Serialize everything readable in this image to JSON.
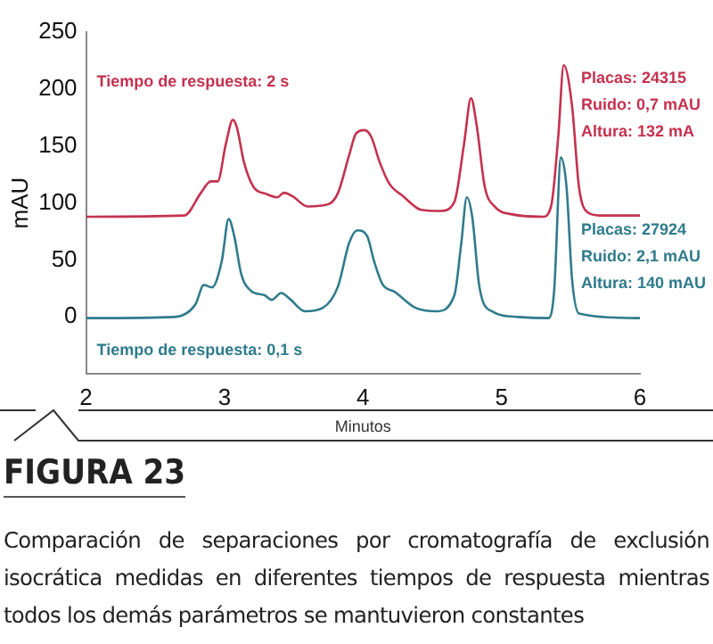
{
  "chart_data": {
    "type": "line",
    "title": "FIGURA 23",
    "subtitle": "Comparación de separaciones por cromatografía de exclusión isocrática medidas en diferentes tiempos de respuesta mientras todos los demás parámetros se mantuvieron constantes",
    "xlabel": "Minutos",
    "ylabel": "mAU",
    "xlim": [
      2,
      6
    ],
    "xticks": [
      2,
      3,
      4,
      5,
      6
    ],
    "ylim": [
      -50,
      250
    ],
    "yticks": [
      0,
      50,
      100,
      150,
      200,
      250
    ],
    "grid": false,
    "legend": false,
    "marker": "none",
    "line_style": "solid",
    "series": [
      {
        "name": "Tiempo de respuesta: 2 s",
        "color": "#c4324f",
        "x": [
          2,
          2.71,
          2.83,
          2.9,
          2.95,
          3.01,
          3.06,
          3.09,
          3.14,
          3.21,
          3.3,
          3.38,
          3.43,
          3.49,
          3.6,
          3.75,
          3.82,
          3.9,
          3.95,
          4.01,
          4.06,
          4.12,
          4.19,
          4.29,
          4.42,
          4.56,
          4.66,
          4.73,
          4.78,
          4.82,
          4.88,
          4.95,
          5.08,
          5.3,
          5.36,
          5.41,
          5.45,
          5.51,
          5.56,
          5.62,
          5.71,
          6
        ],
        "values": [
          88,
          89,
          109,
          119,
          119,
          152,
          173,
          166,
          136,
          114,
          108,
          105,
          109,
          106,
          97,
          99,
          109,
          142,
          161,
          164,
          158,
          136,
          117,
          106,
          94,
          93,
          101,
          152,
          192,
          169,
          114,
          97,
          90,
          88,
          98,
          158,
          221,
          185,
          114,
          92,
          89,
          89
        ]
      },
      {
        "name": "Tiempo de respuesta: 0,1 s",
        "color": "#2f7b8c",
        "x": [
          2,
          2.64,
          2.79,
          2.85,
          2.91,
          2.98,
          3.03,
          3.07,
          3.12,
          3.19,
          3.29,
          3.34,
          3.41,
          3.47,
          3.58,
          3.71,
          3.82,
          3.9,
          3.96,
          4.03,
          4.08,
          4.14,
          4.23,
          4.38,
          4.53,
          4.66,
          4.71,
          4.75,
          4.79,
          4.84,
          4.93,
          5.12,
          5.34,
          5.38,
          5.43,
          5.47,
          5.51,
          5.56,
          6
        ],
        "values": [
          -1,
          0,
          11,
          28,
          26,
          49,
          86,
          71,
          38,
          23,
          19,
          15,
          21,
          16,
          5,
          8,
          27,
          65,
          76,
          71,
          49,
          29,
          22,
          8,
          5,
          19,
          65,
          105,
          87,
          27,
          5,
          0,
          -1,
          22,
          140,
          114,
          33,
          3,
          -1
        ]
      }
    ],
    "annotations": [
      "Placas: 24315",
      "Ruido: 0,7 mAU",
      "Altura: 132 mA",
      "Placas: 27924",
      "Ruido: 2,1 mAU",
      "Altura: 140 mAU"
    ]
  }
}
